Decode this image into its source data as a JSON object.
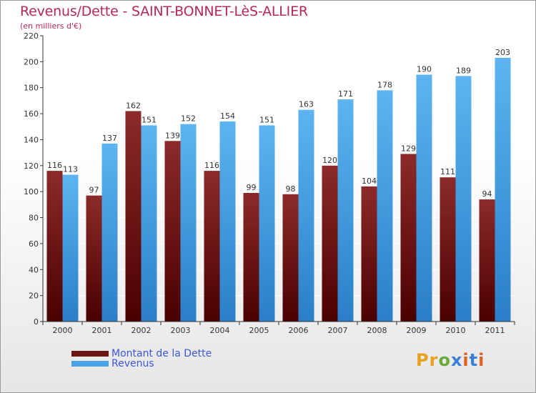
{
  "title": "Revenus/Dette - SAINT-BONNET-LèS-ALLIER",
  "subtitle": "(en milliers d'€)",
  "logo_text": "Proxiti",
  "colors": {
    "dette": "#6b1414",
    "revenus": "#4aa3e6",
    "title": "#b5285a",
    "legend_text": "#3a58d8"
  },
  "legend": [
    {
      "label": "Montant de la Dette",
      "color": "#6b1414"
    },
    {
      "label": "Revenus",
      "color": "#4aa3e6"
    }
  ],
  "chart_data": {
    "type": "bar",
    "title": "Revenus/Dette - SAINT-BONNET-LèS-ALLIER",
    "subtitle": "(en milliers d'€)",
    "categories": [
      "2000",
      "2001",
      "2002",
      "2003",
      "2004",
      "2005",
      "2006",
      "2007",
      "2008",
      "2009",
      "2010",
      "2011"
    ],
    "series": [
      {
        "name": "Montant de la Dette",
        "values": [
          116,
          97,
          162,
          139,
          116,
          99,
          98,
          120,
          104,
          129,
          111,
          94
        ]
      },
      {
        "name": "Revenus",
        "values": [
          113,
          137,
          151,
          152,
          154,
          151,
          163,
          171,
          178,
          190,
          189,
          203
        ]
      }
    ],
    "ylim": [
      0,
      220
    ],
    "yticks": [
      0,
      20,
      40,
      60,
      80,
      100,
      120,
      140,
      160,
      180,
      200,
      220
    ],
    "grid": true,
    "legend_position": "bottom-left"
  }
}
